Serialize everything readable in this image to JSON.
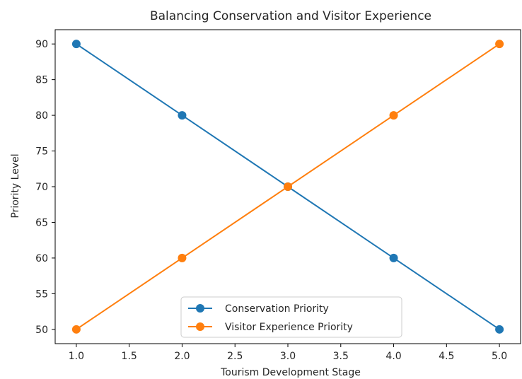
{
  "chart_data": {
    "type": "line",
    "title": "Balancing Conservation and Visitor Experience",
    "xlabel": "Tourism Development Stage",
    "ylabel": "Priority Level",
    "xlim": [
      0.8,
      5.2
    ],
    "ylim": [
      48,
      92
    ],
    "x_ticks": [
      1.0,
      1.5,
      2.0,
      2.5,
      3.0,
      3.5,
      4.0,
      4.5,
      5.0
    ],
    "x_tick_labels": [
      "1.0",
      "1.5",
      "2.0",
      "2.5",
      "3.0",
      "3.5",
      "4.0",
      "4.5",
      "5.0"
    ],
    "y_ticks": [
      50,
      55,
      60,
      65,
      70,
      75,
      80,
      85,
      90
    ],
    "y_tick_labels": [
      "50",
      "55",
      "60",
      "65",
      "70",
      "75",
      "80",
      "85",
      "90"
    ],
    "grid": false,
    "legend_position": "lower-center",
    "x": [
      1,
      2,
      3,
      4,
      5
    ],
    "series": [
      {
        "name": "Conservation Priority",
        "color": "#1f77b4",
        "marker": "circle",
        "values": [
          90,
          80,
          70,
          60,
          50
        ]
      },
      {
        "name": "Visitor Experience Priority",
        "color": "#ff7f0e",
        "marker": "circle",
        "values": [
          50,
          60,
          70,
          80,
          90
        ]
      }
    ]
  }
}
